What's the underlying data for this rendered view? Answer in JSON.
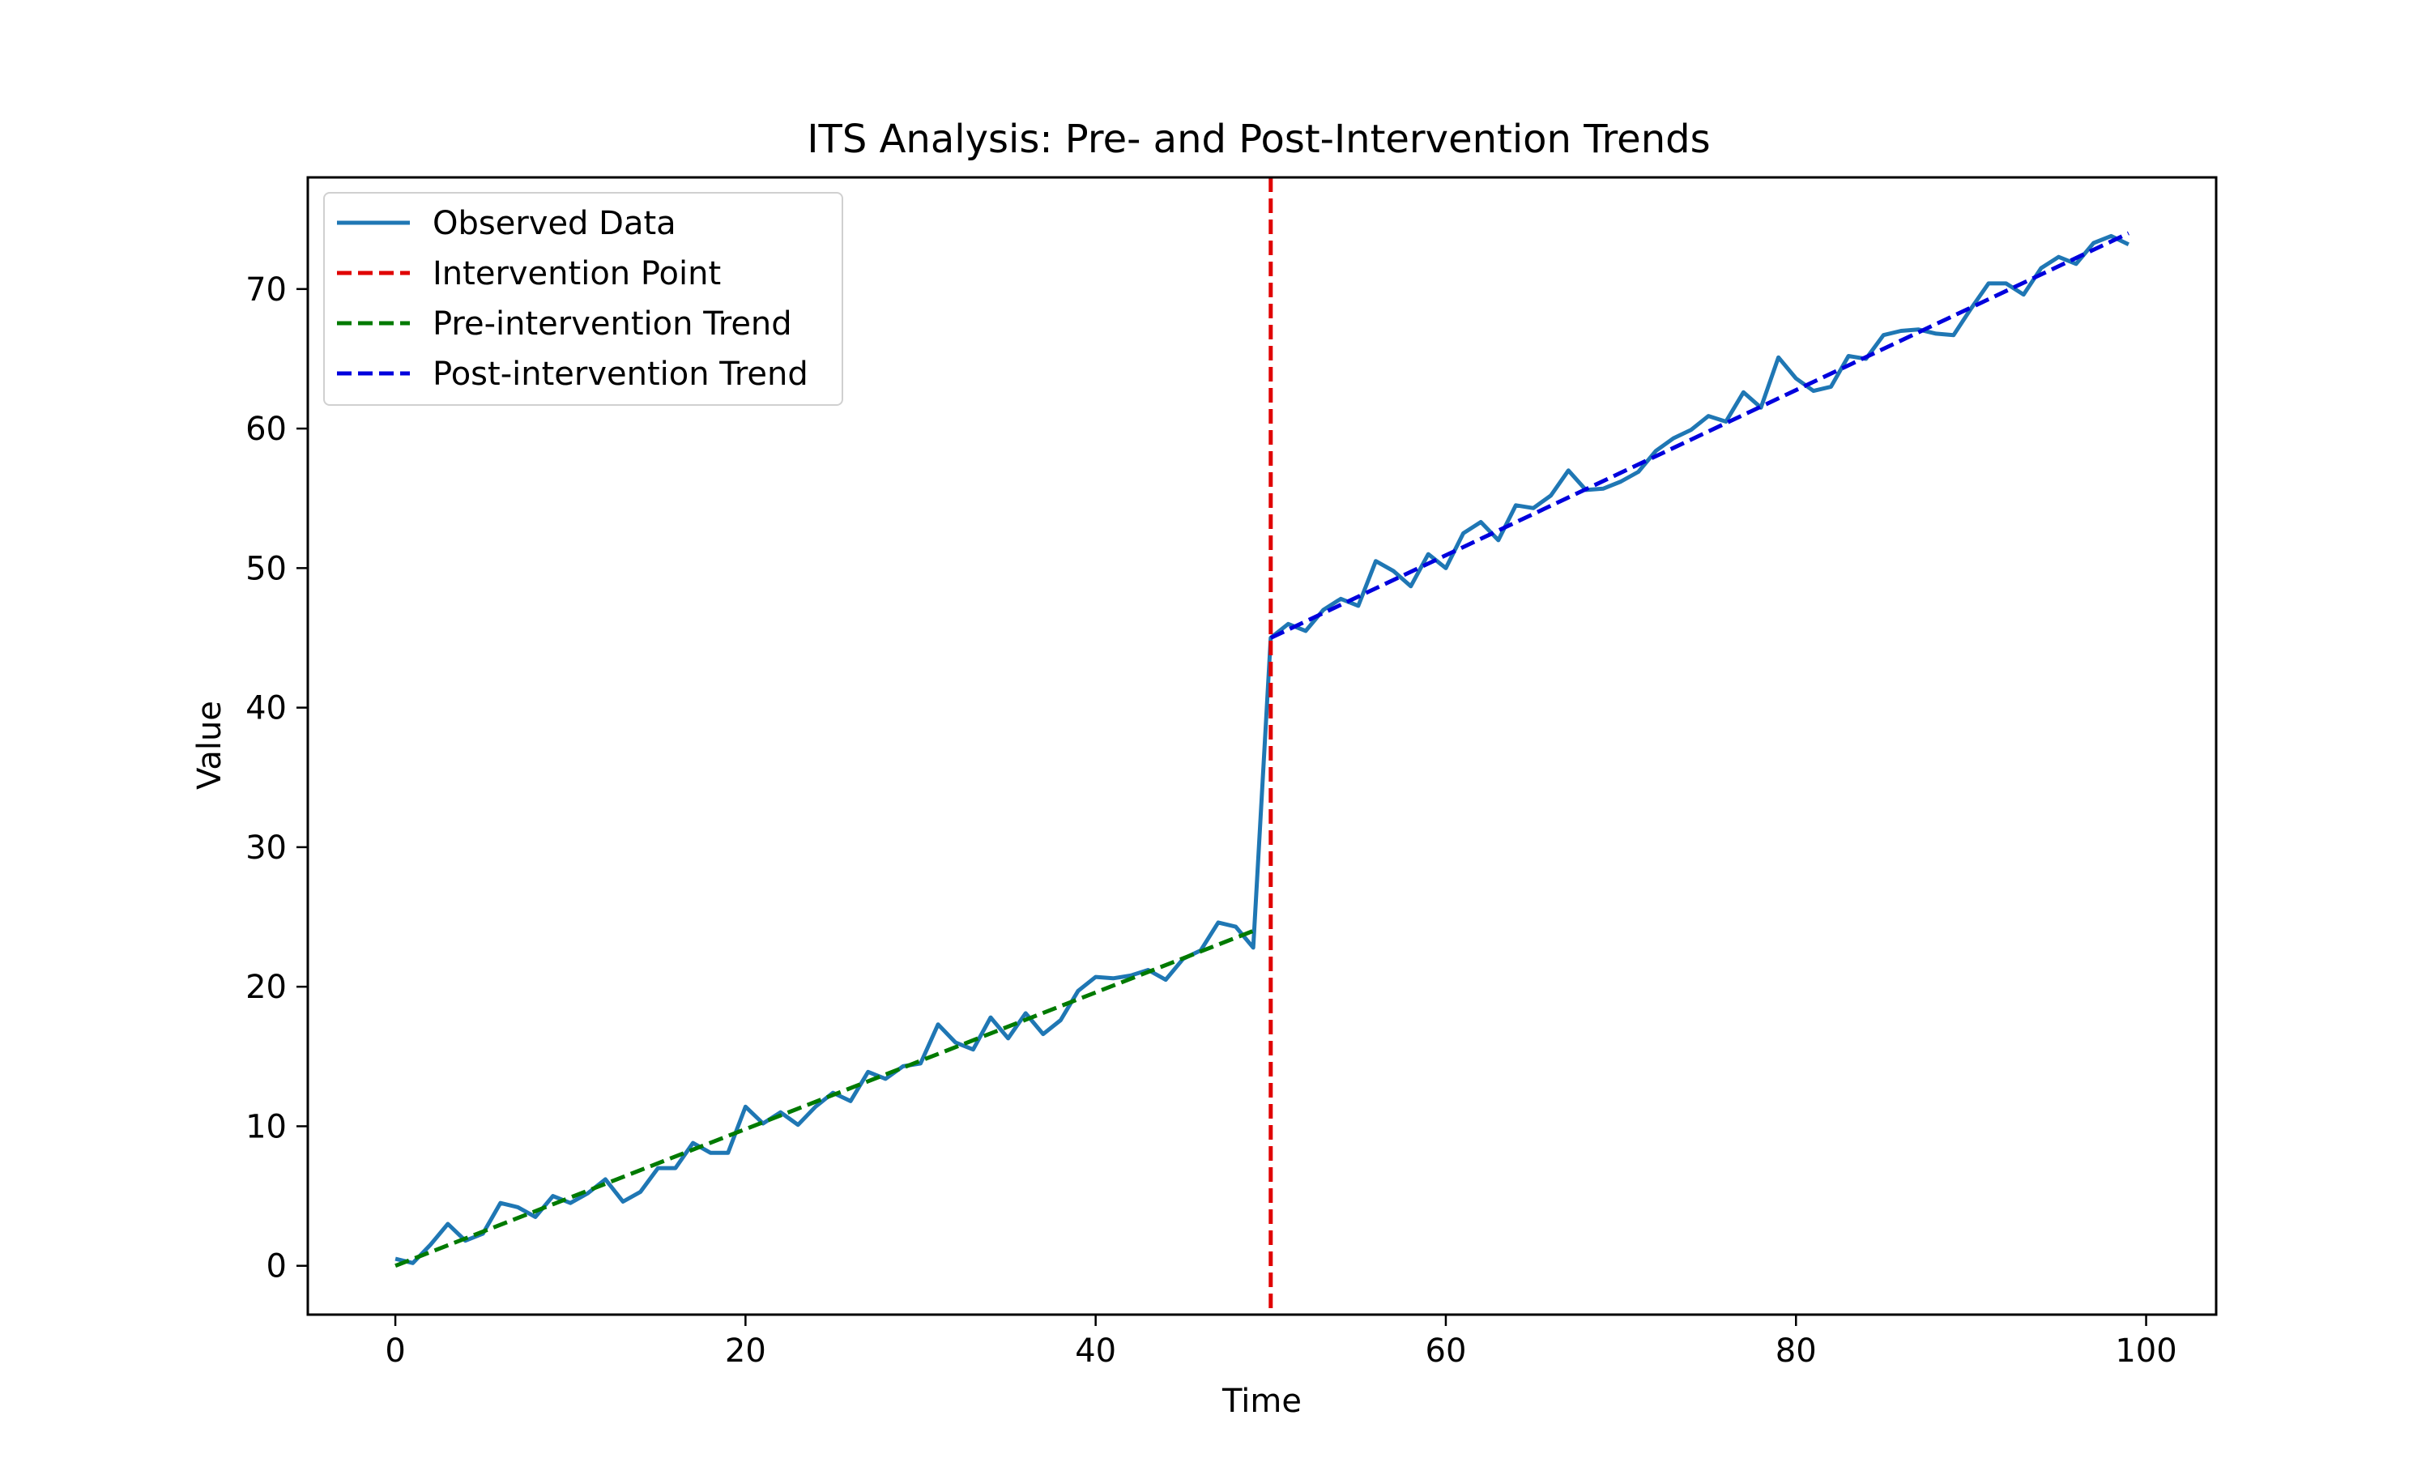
{
  "chart_data": {
    "type": "line",
    "title": "ITS Analysis: Pre- and Post-Intervention Trends",
    "xlabel": "Time",
    "ylabel": "Value",
    "xlim": [
      -5,
      104
    ],
    "ylim": [
      -3.5,
      78
    ],
    "xticks": [
      0,
      20,
      40,
      60,
      80,
      100
    ],
    "yticks": [
      0,
      10,
      20,
      30,
      40,
      50,
      60,
      70
    ],
    "grid": false,
    "legend_position": "top-left",
    "intervention_x": 50,
    "series": [
      {
        "name": "Observed Data",
        "style": "solid",
        "color": "#1f77b4",
        "x": [
          0,
          1,
          2,
          3,
          4,
          5,
          6,
          7,
          8,
          9,
          10,
          11,
          12,
          13,
          14,
          15,
          16,
          17,
          18,
          19,
          20,
          21,
          22,
          23,
          24,
          25,
          26,
          27,
          28,
          29,
          30,
          31,
          32,
          33,
          34,
          35,
          36,
          37,
          38,
          39,
          40,
          41,
          42,
          43,
          44,
          45,
          46,
          47,
          48,
          49,
          50,
          51,
          52,
          53,
          54,
          55,
          56,
          57,
          58,
          59,
          60,
          61,
          62,
          63,
          64,
          65,
          66,
          67,
          68,
          69,
          70,
          71,
          72,
          73,
          74,
          75,
          76,
          77,
          78,
          79,
          80,
          81,
          82,
          83,
          84,
          85,
          86,
          87,
          88,
          89,
          90,
          91,
          92,
          93,
          94,
          95,
          96,
          97,
          98,
          99
        ],
        "y": [
          0.5,
          0.2,
          1.5,
          3.0,
          1.8,
          2.3,
          4.5,
          4.2,
          3.5,
          5.0,
          4.5,
          5.2,
          6.2,
          4.6,
          5.3,
          7.0,
          7.0,
          8.8,
          8.1,
          8.1,
          11.4,
          10.2,
          11.0,
          10.1,
          11.4,
          12.4,
          11.8,
          13.9,
          13.4,
          14.3,
          14.5,
          17.3,
          16.0,
          15.5,
          17.8,
          16.3,
          18.1,
          16.6,
          17.6,
          19.7,
          20.7,
          20.6,
          20.8,
          21.2,
          20.5,
          22.0,
          22.6,
          24.6,
          24.3,
          22.8,
          45.0,
          46.0,
          45.5,
          47.0,
          47.8,
          47.3,
          50.5,
          49.8,
          48.7,
          51.0,
          50.0,
          52.5,
          53.3,
          52.0,
          54.5,
          54.3,
          55.2,
          57.0,
          55.6,
          55.7,
          56.2,
          56.9,
          58.4,
          59.3,
          59.9,
          60.9,
          60.5,
          62.6,
          61.5,
          65.1,
          63.6,
          62.7,
          63.0,
          65.2,
          65.0,
          66.7,
          67.0,
          67.1,
          66.8,
          66.7,
          68.6,
          70.4,
          70.4,
          69.6,
          71.5,
          72.3,
          71.8,
          73.3,
          73.8,
          73.2
        ]
      },
      {
        "name": "Intervention Point",
        "style": "dashed",
        "color": "#e00000",
        "type": "vline",
        "x": 50
      },
      {
        "name": "Pre-intervention Trend",
        "style": "dashed",
        "color": "#007a00",
        "x": [
          0,
          49
        ],
        "y": [
          0.0,
          24.0
        ]
      },
      {
        "name": "Post-intervention Trend",
        "style": "dashed",
        "color": "#0000dd",
        "x": [
          50,
          99
        ],
        "y": [
          45.0,
          74.0
        ]
      }
    ]
  }
}
